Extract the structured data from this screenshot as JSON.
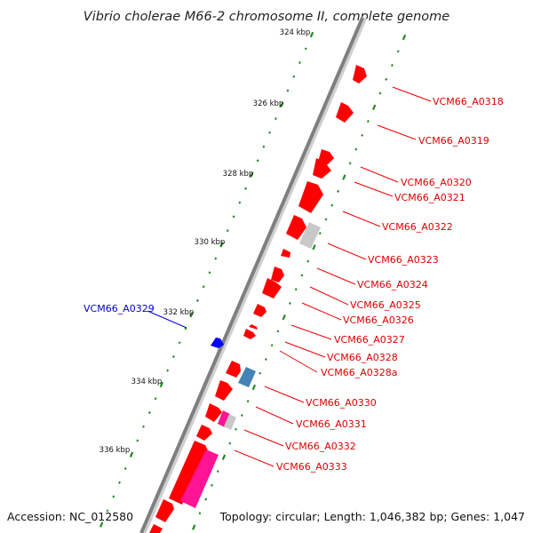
{
  "title": "Vibrio cholerae M66-2 chromosome II, complete genome",
  "footer": {
    "accession": "Accession: NC_012580",
    "summary": "Topology: circular; Length: 1,046,382 bp; Genes: 1,047"
  },
  "colors": {
    "forward_gene": "#ff0000",
    "reverse_gene": "#0000ff",
    "label_forward": "#dd0000",
    "label_reverse": "#0000cc",
    "tick": "#228b22",
    "backbone": "#808080",
    "pseudo": "#c8c8c8",
    "pink": "#ff1493",
    "steel": "#4682b4"
  },
  "kbp_ticks": [
    "324 kbp",
    "326 kbp",
    "328 kbp",
    "330 kbp",
    "332 kbp",
    "334 kbp",
    "336 kbp"
  ],
  "genes": [
    {
      "label": "VCM66_A0318",
      "strand": "forward"
    },
    {
      "label": "VCM66_A0319",
      "strand": "forward"
    },
    {
      "label": "VCM66_A0320",
      "strand": "forward"
    },
    {
      "label": "VCM66_A0321",
      "strand": "forward"
    },
    {
      "label": "VCM66_A0322",
      "strand": "forward"
    },
    {
      "label": "VCM66_A0323",
      "strand": "forward"
    },
    {
      "label": "VCM66_A0324",
      "strand": "forward"
    },
    {
      "label": "VCM66_A0325",
      "strand": "forward"
    },
    {
      "label": "VCM66_A0326",
      "strand": "forward"
    },
    {
      "label": "VCM66_A0327",
      "strand": "forward"
    },
    {
      "label": "VCM66_A0328",
      "strand": "forward"
    },
    {
      "label": "VCM66_A0328a",
      "strand": "forward"
    },
    {
      "label": "VCM66_A0329",
      "strand": "reverse"
    },
    {
      "label": "VCM66_A0330",
      "strand": "forward"
    },
    {
      "label": "VCM66_A0331",
      "strand": "forward"
    },
    {
      "label": "VCM66_A0332",
      "strand": "forward"
    },
    {
      "label": "VCM66_A0333",
      "strand": "forward"
    }
  ]
}
